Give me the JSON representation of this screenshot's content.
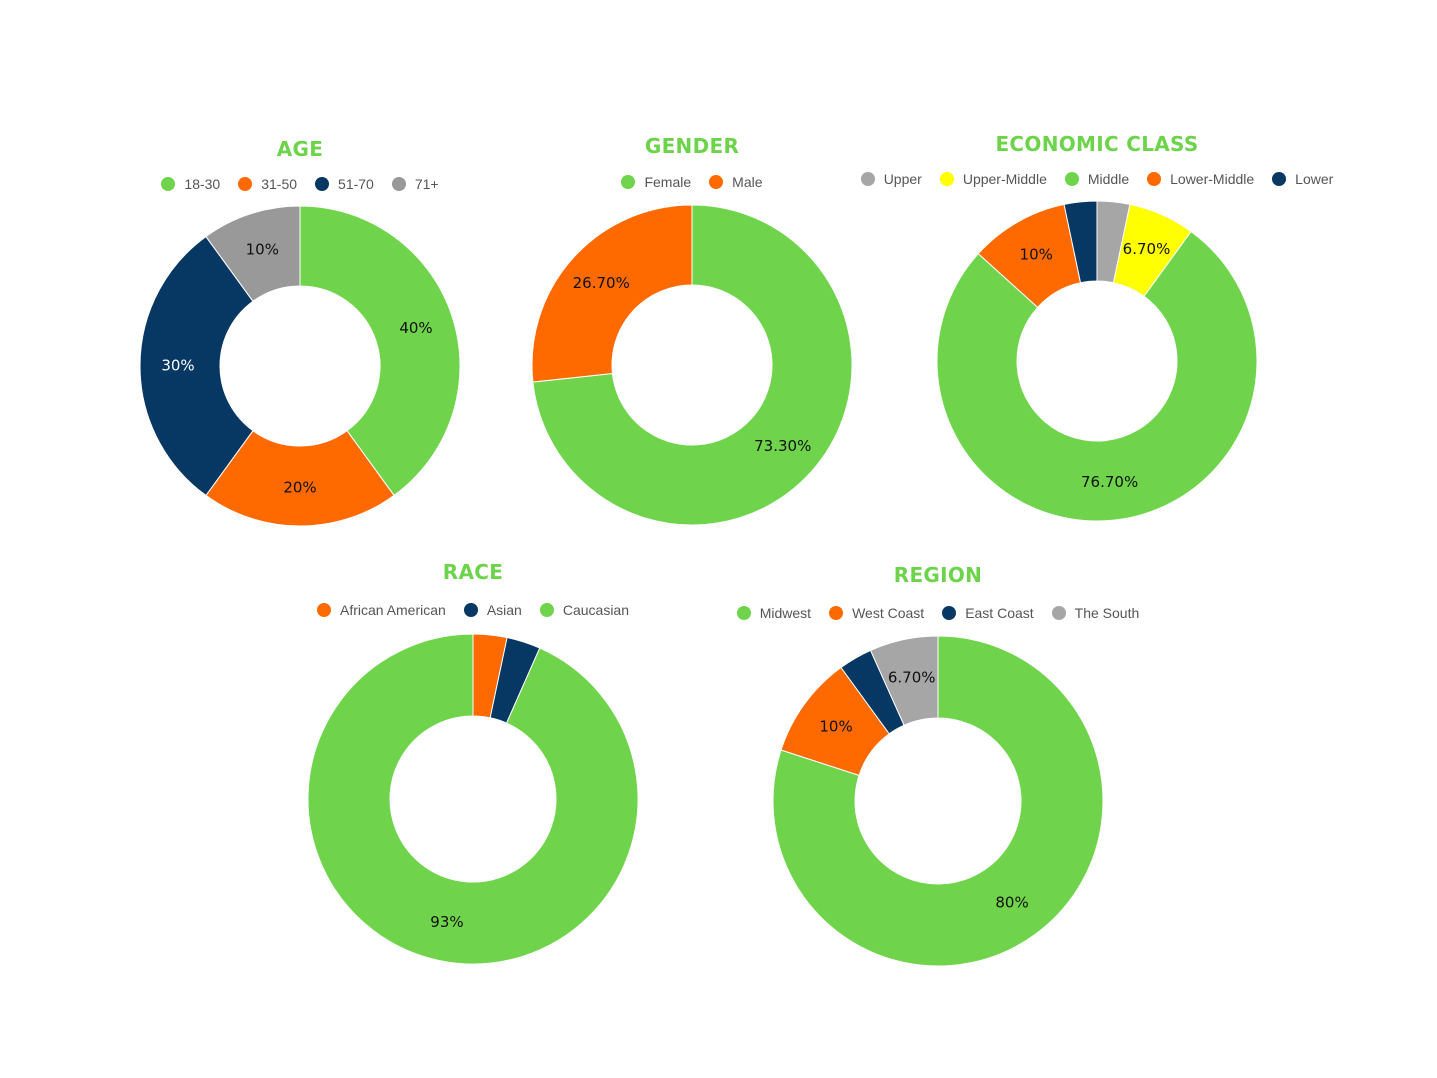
{
  "colors": {
    "title": "#6dd34b",
    "green": "#6fd44b",
    "orange": "#ff6a00",
    "navy": "#073763",
    "gray": "#999999",
    "lightgray": "#a6a6a6",
    "yellow": "#ffff00"
  },
  "chart_data": [
    {
      "type": "pie",
      "title": "AGE",
      "categories": [
        "18-30",
        "31-50",
        "51-70",
        "71+"
      ],
      "values": [
        40,
        20,
        30,
        10
      ],
      "labels": [
        "40%",
        "20%",
        "30%",
        "10%"
      ],
      "colors": [
        "#6fd44b",
        "#ff6a00",
        "#073763",
        "#999999"
      ],
      "legend": "top",
      "donut": true
    },
    {
      "type": "pie",
      "title": "GENDER",
      "categories": [
        "Female",
        "Male"
      ],
      "values": [
        73.3,
        26.7
      ],
      "labels": [
        "73.30%",
        "26.70%"
      ],
      "colors": [
        "#6fd44b",
        "#ff6a00"
      ],
      "legend": "top",
      "donut": true
    },
    {
      "type": "pie",
      "title": "ECONOMIC CLASS",
      "categories": [
        "Upper",
        "Upper-Middle",
        "Middle",
        "Lower-Middle",
        "Lower"
      ],
      "values": [
        3.3,
        6.7,
        76.7,
        10,
        3.3
      ],
      "labels": [
        "",
        "6.70%",
        "76.70%",
        "10%",
        ""
      ],
      "colors": [
        "#a6a6a6",
        "#ffff00",
        "#6fd44b",
        "#ff6a00",
        "#073763"
      ],
      "legend": "top",
      "donut": true
    },
    {
      "type": "pie",
      "title": "RACE",
      "categories": [
        "African American",
        "Asian",
        "Caucasian"
      ],
      "values": [
        3.3,
        3.3,
        93
      ],
      "labels": [
        "",
        "",
        "93%"
      ],
      "colors": [
        "#ff6a00",
        "#073763",
        "#6fd44b"
      ],
      "legend": "top",
      "donut": true
    },
    {
      "type": "pie",
      "title": "REGION",
      "categories": [
        "Midwest",
        "West Coast",
        "East Coast",
        "The South"
      ],
      "values": [
        80,
        10,
        3.3,
        6.7
      ],
      "labels": [
        "80%",
        "10%",
        "",
        "6.70%"
      ],
      "colors": [
        "#6fd44b",
        "#ff6a00",
        "#073763",
        "#a6a6a6"
      ],
      "legend": "top",
      "donut": true
    }
  ]
}
